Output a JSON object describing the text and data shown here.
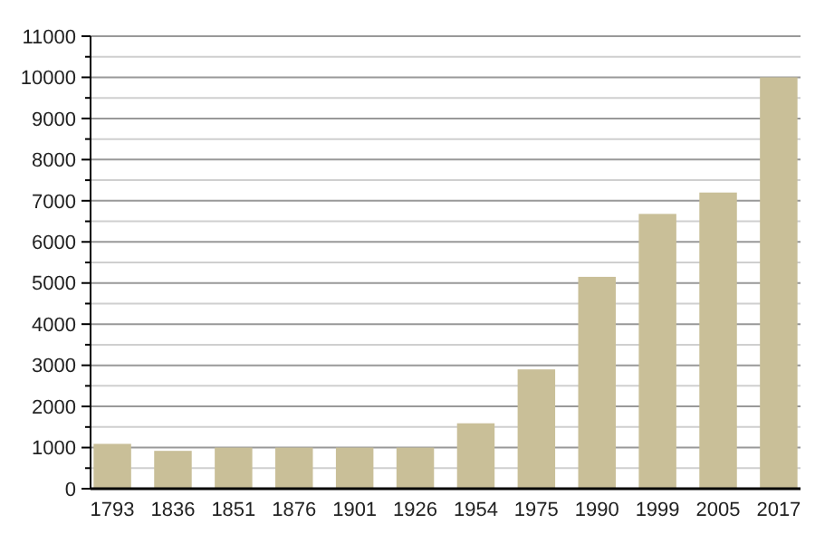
{
  "chart_data": {
    "type": "bar",
    "categories": [
      "1793",
      "1836",
      "1851",
      "1876",
      "1901",
      "1926",
      "1954",
      "1975",
      "1990",
      "1999",
      "2005",
      "2017"
    ],
    "values": [
      1090,
      920,
      1000,
      1000,
      1000,
      1000,
      1590,
      2900,
      5150,
      6680,
      7200,
      10000
    ],
    "color": "#c9bf98",
    "ylim": [
      0,
      11000
    ],
    "yticks": [
      0,
      {
        "value": 500,
        "label": null
      },
      1000,
      {
        "value": 1500,
        "label": null
      },
      2000,
      {
        "value": 2500,
        "label": null
      },
      3000,
      {
        "value": 3500,
        "label": null
      },
      4000,
      {
        "value": 4500,
        "label": null
      },
      5000,
      {
        "value": 5500,
        "label": null
      },
      6000,
      {
        "value": 6500,
        "label": null
      },
      7000,
      {
        "value": 7500,
        "label": null
      },
      8000,
      {
        "value": 8500,
        "label": null
      },
      9000,
      {
        "value": 9500,
        "label": null
      },
      10000,
      {
        "value": 10500,
        "label": null
      },
      11000
    ],
    "grid": true
  }
}
